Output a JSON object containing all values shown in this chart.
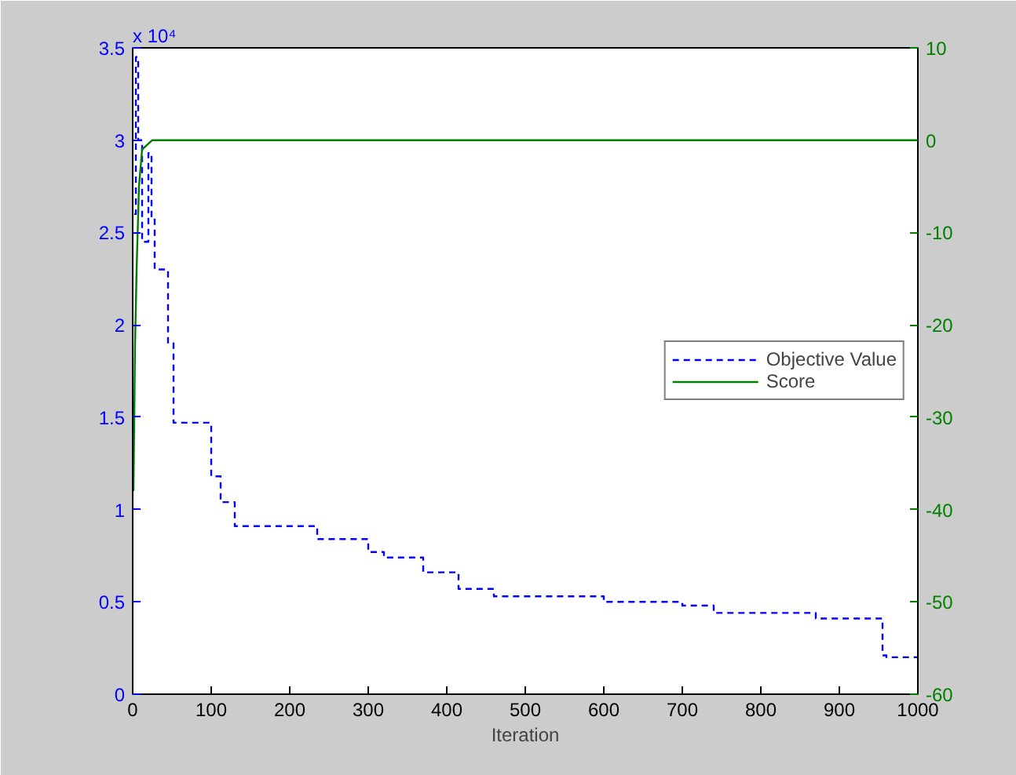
{
  "chart_data": {
    "type": "step",
    "xlabel": "Iteration",
    "annotations": [
      "x 10⁴"
    ],
    "xlim": [
      0,
      1000
    ],
    "xticks": [
      0,
      100,
      200,
      300,
      400,
      500,
      600,
      700,
      800,
      900,
      1000
    ],
    "ylim": [
      0,
      3.5
    ],
    "yticks": [
      0,
      0.5,
      1,
      1.5,
      2,
      2.5,
      3,
      3.5
    ],
    "y2lim": [
      -60,
      10
    ],
    "y2ticks": [
      -60,
      -50,
      -40,
      -30,
      -20,
      -10,
      0,
      10
    ],
    "grid": false,
    "legend": "right",
    "series": [
      {
        "name": "Objective Value",
        "color": "#0000ff",
        "line_style": "dashed",
        "x": [
          2,
          4,
          7,
          12,
          20,
          24,
          28,
          45,
          52,
          100,
          112,
          130,
          235,
          300,
          320,
          370,
          415,
          460,
          600,
          700,
          740,
          870,
          955,
          960,
          1000
        ],
        "values": [
          2.6,
          3.45,
          3.0,
          2.45,
          2.93,
          2.57,
          2.3,
          1.9,
          1.47,
          1.18,
          1.04,
          0.91,
          0.84,
          0.77,
          0.74,
          0.66,
          0.57,
          0.53,
          0.5,
          0.48,
          0.44,
          0.41,
          0.21,
          0.2,
          0.2
        ]
      },
      {
        "name": "Score",
        "color": "#008000",
        "type": "line",
        "line_style": "solid",
        "axis": "y2",
        "x": [
          1,
          3,
          5,
          8,
          12,
          25,
          1000
        ],
        "values": [
          -38,
          -22,
          -14,
          -5,
          -1,
          0,
          0
        ]
      }
    ]
  }
}
